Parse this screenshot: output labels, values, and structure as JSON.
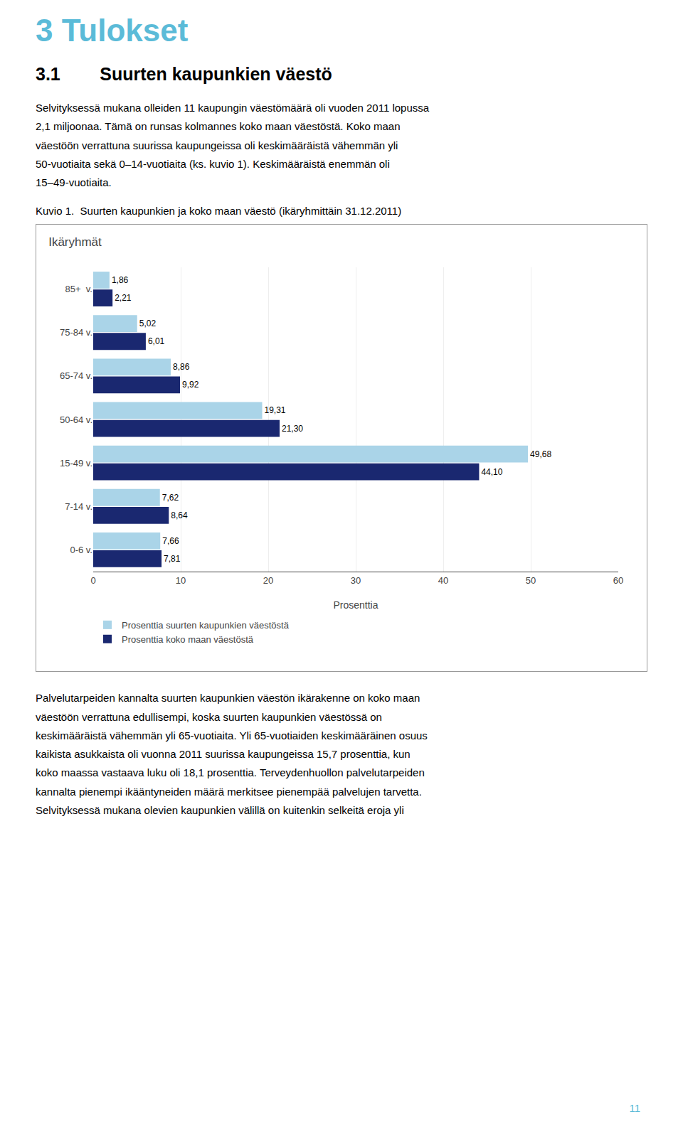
{
  "page_title": "3 Tulokset",
  "section_title": "3.1        Suurten kaupunkien väestö",
  "body_text_1": "Selvityksessä mukana olleiden 11 kaupungin väestömäärä oli vuoden 2011 lopussa\n2,1 miljoonaa. Tämä on runsas kolmannes koko maan väestöstä. Koko maan\nväestöön verrattuna suurissa kaupungeissa oli keskimääräistä vähemmän yli\n50-vuotiaita sekä 0–14-vuotiaita (ks. kuvio 1). Keskimääräistä enemmän oli\n15–49-vuotiaita.",
  "caption": "Kuvio 1.  Suurten kaupunkien ja koko maan väestö (ikäryhmittäin 31.12.2011)",
  "body_text_2": "Palvelutarpeiden kannalta suurten kaupunkien väestön ikärakenne on koko maan\nväestöön verrattuna edullisempi, koska suurten kaupunkien väestössä on\nkeskimääräistä vähemmän yli 65-vuotiaita. Yli 65-vuotiaiden keskimääräinen osuus\nkaikista asukkaista oli vuonna 2011 suurissa kaupungeissa 15,7 prosenttia, kun\nkoko maassa vastaava luku oli 18,1 prosenttia. Terveydenhuollon palvelutarpeiden\nkannalta pienempi ikääntyneiden määrä merkitsee pienempää palvelujen tarvetta.\nSelvityksessä mukana olevien kaupunkien välillä on kuitenkin selkeitä eroja yli",
  "page_number": "11",
  "chart_data": {
    "type": "bar",
    "orientation": "horizontal",
    "title": "Ikäryhmät",
    "xlabel": "Prosenttia",
    "categories": [
      "85+  v.",
      "75-84 v.",
      "65-74 v.",
      "50-64 v.",
      "15-49 v.",
      "7-14 v.",
      "0-6 v."
    ],
    "series": [
      {
        "name": "Prosenttia suurten kaupunkien väestöstä",
        "color": "#aad4e8",
        "values": [
          1.86,
          5.02,
          8.86,
          19.31,
          49.68,
          7.62,
          7.66
        ],
        "value_labels": [
          "1,86",
          "5,02",
          "8,86",
          "19,31",
          "49,68",
          "7,62",
          "7,66"
        ]
      },
      {
        "name": "Prosenttia koko maan väestöstä",
        "color": "#1a2870",
        "values": [
          2.21,
          6.01,
          9.92,
          21.3,
          44.1,
          8.64,
          7.81
        ],
        "value_labels": [
          "2,21",
          "6,01",
          "9,92",
          "21,30",
          "44,10",
          "8,64",
          "7,81"
        ]
      }
    ],
    "xlim": [
      0,
      60
    ],
    "xticks": [
      0,
      10,
      20,
      30,
      40,
      50,
      60
    ],
    "grid": true,
    "data_labels": true
  }
}
